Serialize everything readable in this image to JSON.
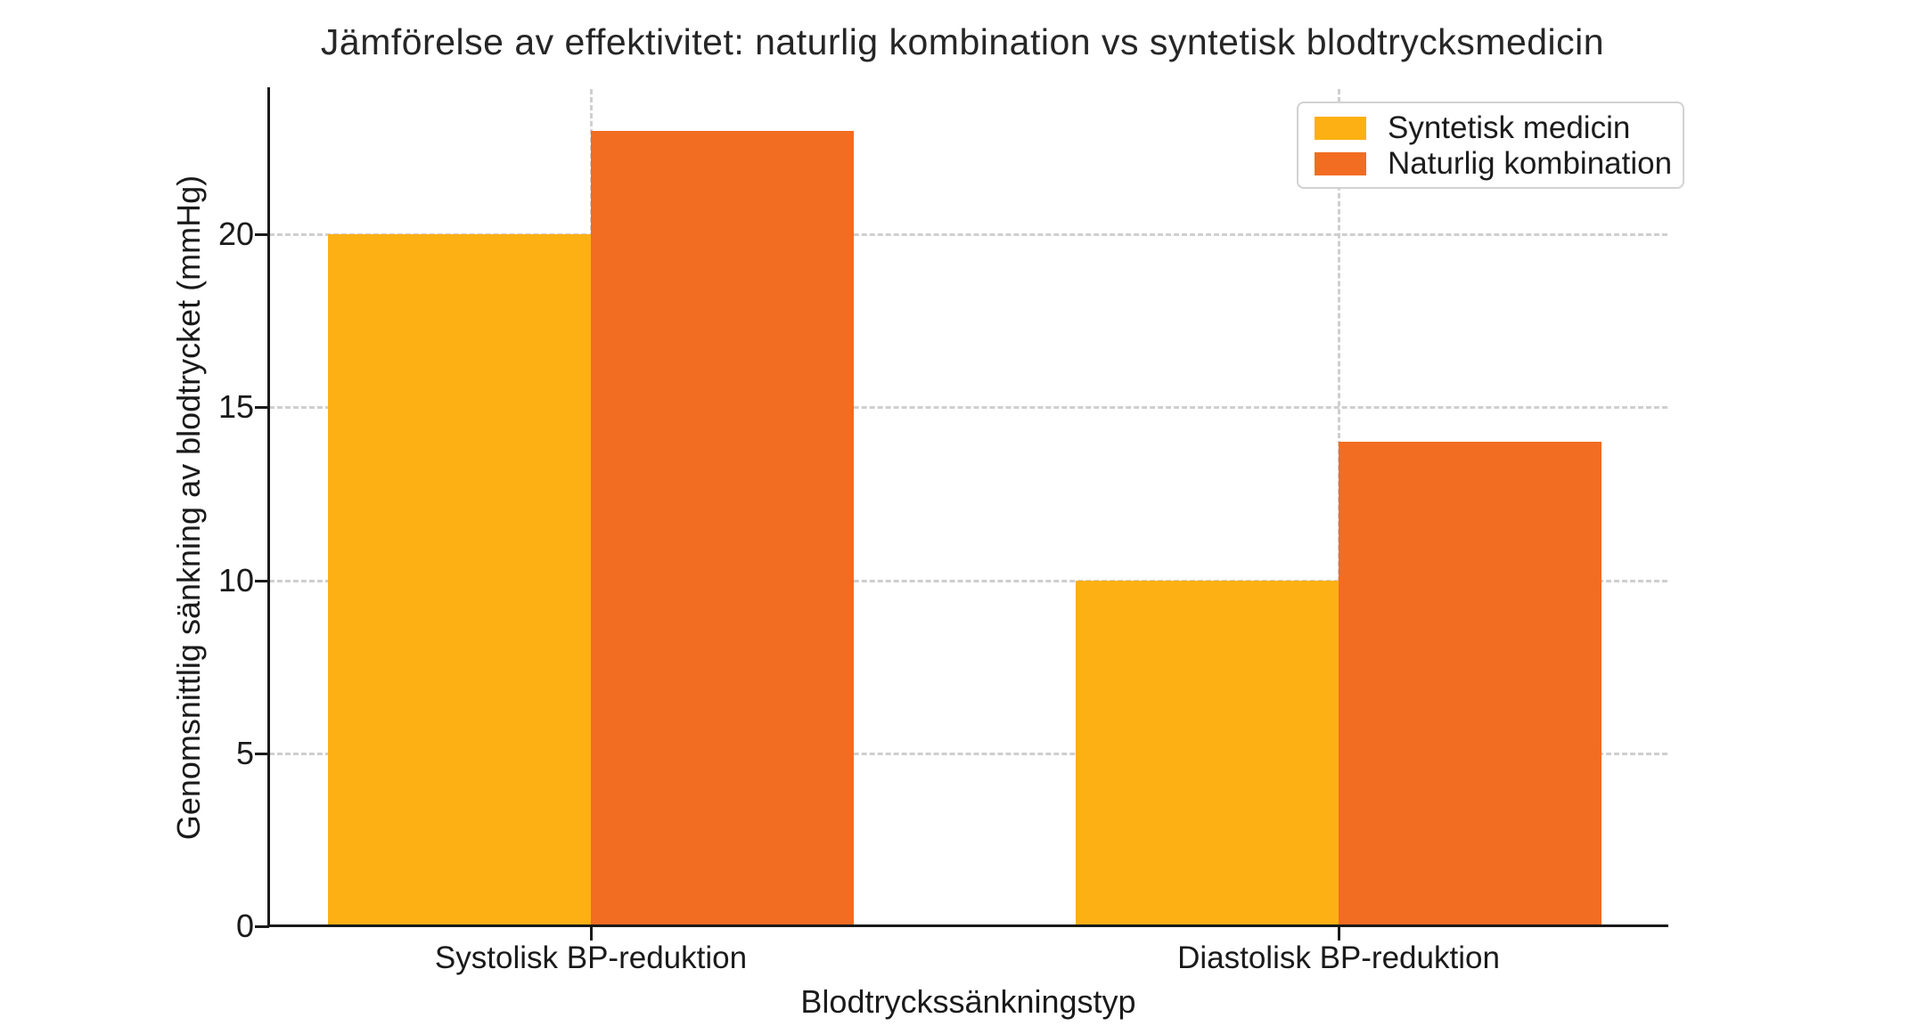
{
  "chart_data": {
    "type": "bar",
    "title": "Jämförelse av effektivitet: naturlig kombination vs syntetisk blodtrycksmedicin",
    "xlabel": "Blodtryckssänkningstyp",
    "ylabel": "Genomsnittlig sänkning av blodtrycket (mmHg)",
    "categories": [
      "Systolisk BP-reduktion",
      "Diastolisk BP-reduktion"
    ],
    "series": [
      {
        "name": "Syntetisk medicin",
        "color": "#FDB013",
        "values": [
          20,
          10
        ]
      },
      {
        "name": "Naturlig kombination",
        "color": "#F26C21",
        "values": [
          23,
          14
        ]
      }
    ],
    "yticks": [
      0,
      5,
      10,
      15,
      20
    ],
    "ylim": [
      0,
      24.2
    ],
    "grid": true,
    "grid_style": "dashed",
    "legend_position": "upper right"
  },
  "colors": {
    "background": "#ffffff",
    "grid": "#cfcfcf",
    "axis": "#1a1a1a",
    "legend_border": "#d2d2d2"
  }
}
